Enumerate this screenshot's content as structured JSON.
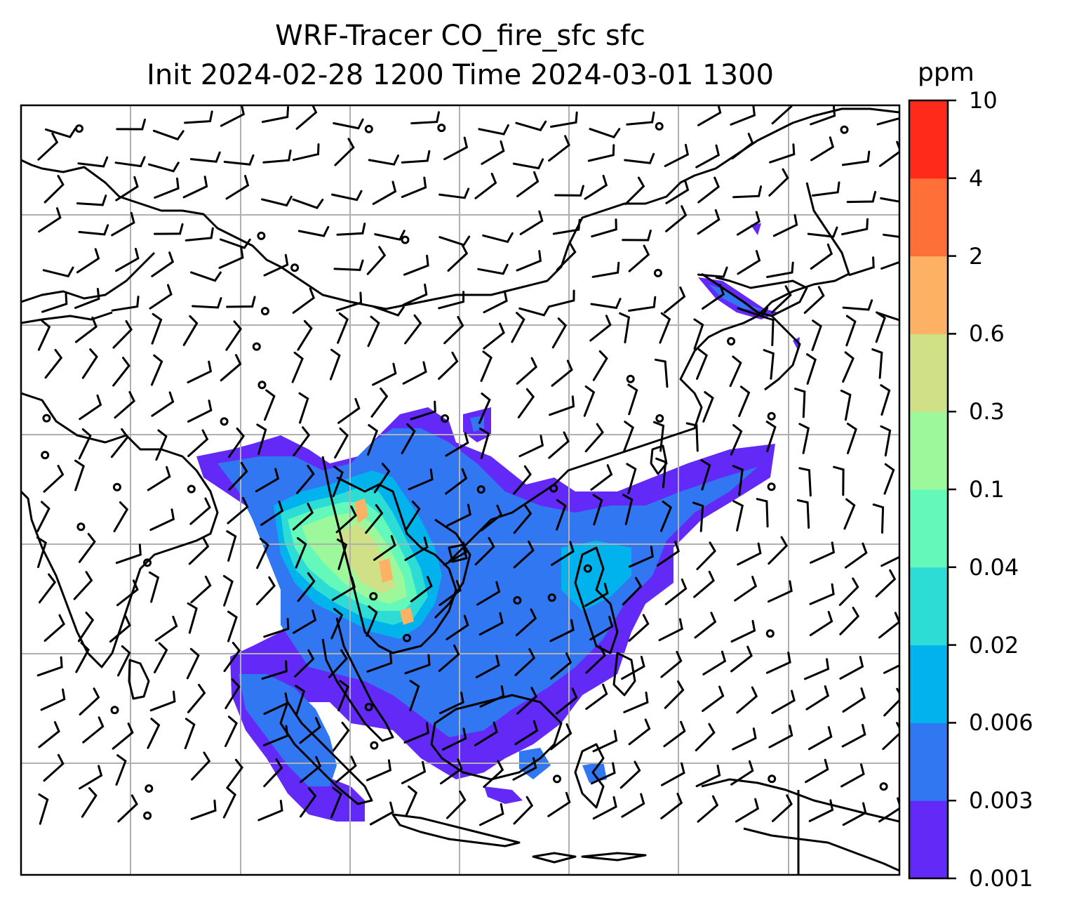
{
  "title": {
    "line1": "WRF-Tracer CO_fire_sfc sfc",
    "line2": "Init 2024-02-28 1200 Time 2024-03-01 1300"
  },
  "colorbar": {
    "unit": "ppm",
    "levels": [
      "0.001",
      "0.003",
      "0.006",
      "0.02",
      "0.04",
      "0.1",
      "0.3",
      "0.6",
      "2",
      "4",
      "10"
    ],
    "colors": [
      "#6329f6",
      "#3277f2",
      "#00b3ec",
      "#2ddcd4",
      "#64f8bb",
      "#9cf89a",
      "#cfe086",
      "#fcb164",
      "#ff7039",
      "#ff2a19"
    ]
  },
  "map": {
    "field_name": "CO_fire_sfc",
    "gridlines": true,
    "coastline_color": "#000000",
    "grid_color": "#b0b0b0"
  }
}
